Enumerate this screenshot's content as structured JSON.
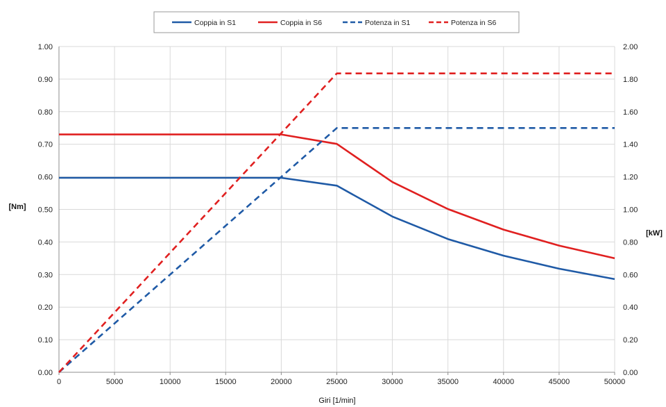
{
  "chart_data": {
    "type": "line",
    "title": "",
    "xlabel": "Giri [1/min]",
    "ylabel": "[Nm]",
    "y2label": "[kW]",
    "xlim": [
      0,
      50000
    ],
    "ylim": [
      0,
      1.0
    ],
    "y2lim": [
      0,
      2.0
    ],
    "xticks": [
      "0",
      "5000",
      "10000",
      "15000",
      "20000",
      "25000",
      "30000",
      "35000",
      "40000",
      "45000",
      "50000"
    ],
    "yticks": [
      "0.00",
      "0.10",
      "0.20",
      "0.30",
      "0.40",
      "0.50",
      "0.60",
      "0.70",
      "0.80",
      "0.90",
      "1.00"
    ],
    "y2ticks": [
      "0.00",
      "0.20",
      "0.40",
      "0.60",
      "0.80",
      "1.00",
      "1.20",
      "1.40",
      "1.60",
      "1.80",
      "2.00"
    ],
    "grid": true,
    "legend_position": "top-center",
    "series": [
      {
        "name": "Coppia in S1",
        "axis": "left",
        "style": "solid",
        "color": "#1f5aa6",
        "x": [
          0,
          20000,
          25000,
          30000,
          35000,
          40000,
          45000,
          50000
        ],
        "y": [
          0.597,
          0.597,
          0.573,
          0.478,
          0.409,
          0.358,
          0.318,
          0.286
        ]
      },
      {
        "name": "Coppia in S6",
        "axis": "left",
        "style": "solid",
        "color": "#e02020",
        "x": [
          0,
          20000,
          25000,
          30000,
          35000,
          40000,
          45000,
          50000
        ],
        "y": [
          0.73,
          0.73,
          0.701,
          0.584,
          0.501,
          0.438,
          0.389,
          0.35
        ]
      },
      {
        "name": "Potenza in S1",
        "axis": "right",
        "style": "dashed",
        "color": "#1f5aa6",
        "x": [
          0,
          25000,
          50000
        ],
        "y": [
          0,
          1.5,
          1.5
        ]
      },
      {
        "name": "Potenza in S6",
        "axis": "right",
        "style": "dashed",
        "color": "#e02020",
        "x": [
          0,
          25000,
          50000
        ],
        "y": [
          0,
          1.835,
          1.835
        ]
      }
    ]
  }
}
